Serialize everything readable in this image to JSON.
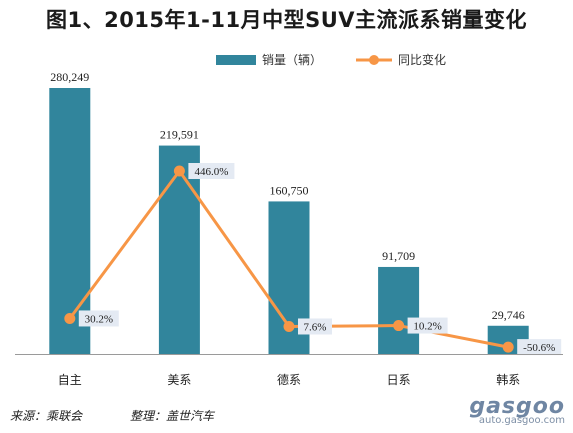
{
  "title": "图1、2015年1-11月中型SUV主流派系销量变化",
  "chart_data": {
    "type": "bar",
    "title": "图1、2015年1-11月中型SUV主流派系销量变化",
    "categories": [
      "自主",
      "美系",
      "德系",
      "日系",
      "韩系"
    ],
    "series": [
      {
        "name": "销量（辆）",
        "type": "bar",
        "color": "#31859c",
        "values": [
          280249,
          219591,
          160750,
          91709,
          29746
        ],
        "labels": [
          "280,249",
          "219,591",
          "160,750",
          "91,709",
          "29,746"
        ]
      },
      {
        "name": "同比变化",
        "type": "line",
        "color": "#f79646",
        "values": [
          30.2,
          446.0,
          7.6,
          10.2,
          -50.6
        ],
        "labels": [
          "30.2%",
          "446.0%",
          "7.6%",
          "10.2%",
          "-50.6%"
        ]
      }
    ],
    "legend": "top-center",
    "grid": false
  },
  "footer": {
    "source": "来源：乘联会",
    "org": "整理：盖世汽车"
  },
  "watermark": {
    "brand": "gasgoo",
    "site": "auto.gasgoo.com"
  }
}
